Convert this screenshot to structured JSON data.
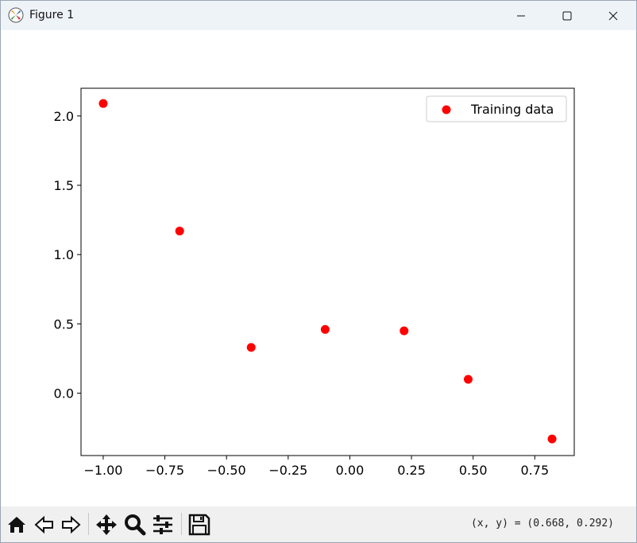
{
  "window": {
    "title": "Figure 1"
  },
  "toolbar": {
    "coords_text": "(x, y) = (0.668, 0.292)",
    "buttons": [
      "home-icon",
      "back-icon",
      "forward-icon",
      "pan-icon",
      "zoom-icon",
      "configure-icon",
      "save-icon"
    ]
  },
  "chart_data": {
    "type": "scatter",
    "title": "",
    "xlabel": "",
    "ylabel": "",
    "xlim": [
      -1.09,
      0.91
    ],
    "ylim": [
      -0.45,
      2.2
    ],
    "xticks": [
      -1.0,
      -0.75,
      -0.5,
      -0.25,
      0.0,
      0.25,
      0.5,
      0.75
    ],
    "xtick_labels": [
      "−1.00",
      "−0.75",
      "−0.50",
      "−0.25",
      "0.00",
      "0.25",
      "0.50",
      "0.75"
    ],
    "yticks": [
      0.0,
      0.5,
      1.0,
      1.5,
      2.0
    ],
    "ytick_labels": [
      "0.0",
      "0.5",
      "1.0",
      "1.5",
      "2.0"
    ],
    "grid": false,
    "legend": {
      "position": "upper-right"
    },
    "series": [
      {
        "name": "Training data",
        "color": "#ff0000",
        "x": [
          -1.0,
          -0.69,
          -0.4,
          -0.1,
          0.22,
          0.48,
          0.82
        ],
        "y": [
          2.09,
          1.17,
          0.33,
          0.46,
          0.45,
          0.1,
          -0.33
        ]
      }
    ]
  }
}
